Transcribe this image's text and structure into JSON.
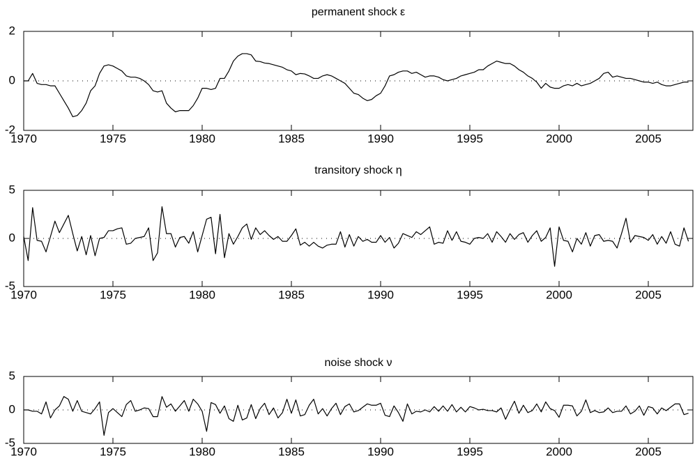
{
  "chart_data": [
    {
      "type": "line",
      "title": "permanent shock ε",
      "xlim": [
        1970,
        2007.5
      ],
      "ylim": [
        -2,
        2
      ],
      "xticks": [
        1970,
        1975,
        1980,
        1985,
        1990,
        1995,
        2000,
        2005
      ],
      "yticks": [
        -2,
        0,
        2
      ],
      "zero_line": true,
      "x": [
        1970,
        1970.25,
        1970.5,
        1970.75,
        1971,
        1971.25,
        1971.5,
        1971.75,
        1972,
        1972.25,
        1972.5,
        1972.75,
        1973,
        1973.25,
        1973.5,
        1973.75,
        1974,
        1974.25,
        1974.5,
        1974.75,
        1975,
        1975.25,
        1975.5,
        1975.75,
        1976,
        1976.25,
        1976.5,
        1976.75,
        1977,
        1977.25,
        1977.5,
        1977.75,
        1978,
        1978.25,
        1978.5,
        1978.75,
        1979,
        1979.25,
        1979.5,
        1979.75,
        1980,
        1980.25,
        1980.5,
        1980.75,
        1981,
        1981.25,
        1981.5,
        1981.75,
        1982,
        1982.25,
        1982.5,
        1982.75,
        1983,
        1983.25,
        1983.5,
        1983.75,
        1984,
        1984.25,
        1984.5,
        1984.75,
        1985,
        1985.25,
        1985.5,
        1985.75,
        1986,
        1986.25,
        1986.5,
        1986.75,
        1987,
        1987.25,
        1987.5,
        1987.75,
        1988,
        1988.25,
        1988.5,
        1988.75,
        1989,
        1989.25,
        1989.5,
        1989.75,
        1990,
        1990.25,
        1990.5,
        1990.75,
        1991,
        1991.25,
        1991.5,
        1991.75,
        1992,
        1992.25,
        1992.5,
        1992.75,
        1993,
        1993.25,
        1993.5,
        1993.75,
        1994,
        1994.25,
        1994.5,
        1994.75,
        1995,
        1995.25,
        1995.5,
        1995.75,
        1996,
        1996.25,
        1996.5,
        1996.75,
        1997,
        1997.25,
        1997.5,
        1997.75,
        1998,
        1998.25,
        1998.5,
        1998.75,
        1999,
        1999.25,
        1999.5,
        1999.75,
        2000,
        2000.25,
        2000.5,
        2000.75,
        2001,
        2001.25,
        2001.5,
        2001.75,
        2002,
        2002.25,
        2002.5,
        2002.75,
        2003,
        2003.25,
        2003.5,
        2003.75,
        2004,
        2004.25,
        2004.5,
        2004.75,
        2005,
        2005.25,
        2005.5,
        2005.75,
        2006,
        2006.25,
        2006.5,
        2006.75,
        2007,
        2007.25
      ],
      "series": [
        {
          "color": "#000000",
          "values": [
            0.0,
            0.0,
            0.3,
            -0.1,
            -0.15,
            -0.15,
            -0.2,
            -0.2,
            -0.5,
            -0.8,
            -1.1,
            -1.45,
            -1.4,
            -1.2,
            -0.9,
            -0.4,
            -0.2,
            0.3,
            0.6,
            0.65,
            0.6,
            0.5,
            0.4,
            0.2,
            0.15,
            0.15,
            0.1,
            0.0,
            -0.15,
            -0.4,
            -0.45,
            -0.4,
            -0.9,
            -1.1,
            -1.25,
            -1.2,
            -1.2,
            -1.2,
            -1.0,
            -0.7,
            -0.3,
            -0.3,
            -0.35,
            -0.3,
            0.1,
            0.1,
            0.4,
            0.8,
            1.0,
            1.1,
            1.1,
            1.05,
            0.8,
            0.78,
            0.72,
            0.7,
            0.65,
            0.6,
            0.55,
            0.45,
            0.4,
            0.25,
            0.3,
            0.28,
            0.2,
            0.1,
            0.1,
            0.2,
            0.25,
            0.2,
            0.1,
            0.0,
            -0.1,
            -0.3,
            -0.5,
            -0.55,
            -0.7,
            -0.8,
            -0.75,
            -0.6,
            -0.5,
            -0.2,
            0.2,
            0.25,
            0.35,
            0.4,
            0.4,
            0.3,
            0.35,
            0.25,
            0.15,
            0.2,
            0.2,
            0.15,
            0.05,
            0.0,
            0.05,
            0.1,
            0.2,
            0.25,
            0.3,
            0.35,
            0.45,
            0.45,
            0.6,
            0.7,
            0.8,
            0.75,
            0.7,
            0.7,
            0.6,
            0.45,
            0.35,
            0.2,
            0.1,
            -0.05,
            -0.3,
            -0.1,
            -0.25,
            -0.3,
            -0.3,
            -0.2,
            -0.15,
            -0.2,
            -0.1,
            -0.2,
            -0.15,
            -0.1,
            0.0,
            0.1,
            0.3,
            0.35,
            0.15,
            0.2,
            0.15,
            0.1,
            0.1,
            0.05,
            0.0,
            -0.05,
            -0.05,
            -0.1,
            -0.05,
            -0.15,
            -0.2,
            -0.2,
            -0.15,
            -0.1,
            -0.05,
            -0.05
          ]
        }
      ]
    },
    {
      "type": "line",
      "title": "transitory shock η",
      "xlim": [
        1970,
        2007.5
      ],
      "ylim": [
        -5,
        5
      ],
      "xticks": [
        1970,
        1975,
        1980,
        1985,
        1990,
        1995,
        2000,
        2005
      ],
      "yticks": [
        -5,
        0,
        5
      ],
      "zero_line": true,
      "x": [
        1970,
        1970.25,
        1970.5,
        1970.75,
        1971,
        1971.25,
        1971.5,
        1971.75,
        1972,
        1972.25,
        1972.5,
        1972.75,
        1973,
        1973.25,
        1973.5,
        1973.75,
        1974,
        1974.25,
        1974.5,
        1974.75,
        1975,
        1975.25,
        1975.5,
        1975.75,
        1976,
        1976.25,
        1976.5,
        1976.75,
        1977,
        1977.25,
        1977.5,
        1977.75,
        1978,
        1978.25,
        1978.5,
        1978.75,
        1979,
        1979.25,
        1979.5,
        1979.75,
        1980,
        1980.25,
        1980.5,
        1980.75,
        1981,
        1981.25,
        1981.5,
        1981.75,
        1982,
        1982.25,
        1982.5,
        1982.75,
        1983,
        1983.25,
        1983.5,
        1983.75,
        1984,
        1984.25,
        1984.5,
        1984.75,
        1985,
        1985.25,
        1985.5,
        1985.75,
        1986,
        1986.25,
        1986.5,
        1986.75,
        1987,
        1987.25,
        1987.5,
        1987.75,
        1988,
        1988.25,
        1988.5,
        1988.75,
        1989,
        1989.25,
        1989.5,
        1989.75,
        1990,
        1990.25,
        1990.5,
        1990.75,
        1991,
        1991.25,
        1991.5,
        1991.75,
        1992,
        1992.25,
        1992.5,
        1992.75,
        1993,
        1993.25,
        1993.5,
        1993.75,
        1994,
        1994.25,
        1994.5,
        1994.75,
        1995,
        1995.25,
        1995.5,
        1995.75,
        1996,
        1996.25,
        1996.5,
        1996.75,
        1997,
        1997.25,
        1997.5,
        1997.75,
        1998,
        1998.25,
        1998.5,
        1998.75,
        1999,
        1999.25,
        1999.5,
        1999.75,
        2000,
        2000.25,
        2000.5,
        2000.75,
        2001,
        2001.25,
        2001.5,
        2001.75,
        2002,
        2002.25,
        2002.5,
        2002.75,
        2003,
        2003.25,
        2003.5,
        2003.75,
        2004,
        2004.25,
        2004.5,
        2004.75,
        2005,
        2005.25,
        2005.5,
        2005.75,
        2006,
        2006.25,
        2006.5,
        2006.75,
        2007,
        2007.25
      ],
      "series": [
        {
          "color": "#000000",
          "values": [
            0.2,
            -2.3,
            3.2,
            -0.2,
            -0.3,
            -1.4,
            0.2,
            1.8,
            0.6,
            1.5,
            2.4,
            0.5,
            -1.3,
            0.2,
            -1.7,
            0.3,
            -1.8,
            0.0,
            0.1,
            0.8,
            0.8,
            1.0,
            1.1,
            -0.6,
            -0.5,
            0.0,
            0.1,
            0.2,
            1.1,
            -2.3,
            -1.5,
            3.3,
            0.5,
            0.5,
            -0.9,
            0.1,
            0.2,
            -0.5,
            0.7,
            -1.4,
            0.3,
            2.0,
            2.2,
            -1.6,
            2.5,
            -2.0,
            0.5,
            -0.6,
            0.2,
            1.1,
            1.5,
            -0.1,
            1.1,
            0.4,
            0.8,
            0.3,
            -0.1,
            0.2,
            -0.3,
            -0.3,
            0.3,
            1.0,
            -0.7,
            -0.4,
            -0.8,
            -0.4,
            -0.8,
            -1.0,
            -0.7,
            -0.6,
            -0.6,
            0.7,
            -0.9,
            0.4,
            -0.8,
            0.2,
            -0.3,
            -0.1,
            -0.4,
            -0.4,
            0.3,
            -0.4,
            0.1,
            -1.0,
            -0.5,
            0.5,
            0.3,
            0.1,
            0.7,
            0.4,
            0.8,
            1.2,
            -0.6,
            -0.4,
            -0.5,
            0.8,
            -0.2,
            0.7,
            -0.3,
            -0.4,
            -0.6,
            0.0,
            0.1,
            0.0,
            0.5,
            -0.4,
            0.7,
            0.2,
            -0.4,
            0.5,
            -0.1,
            0.4,
            0.6,
            -0.4,
            0.3,
            0.8,
            -0.3,
            0.1,
            1.1,
            -2.9,
            1.2,
            -0.2,
            -0.3,
            -1.4,
            0.0,
            -0.6,
            0.6,
            -0.8,
            0.3,
            0.4,
            -0.3,
            -0.2,
            -0.3,
            -1.0,
            0.5,
            2.1,
            -0.4,
            0.3,
            0.2,
            0.1,
            -0.2,
            0.4,
            -0.6,
            0.2,
            -0.5,
            0.7,
            -0.6,
            -0.8,
            1.1,
            -0.3
          ]
        }
      ]
    },
    {
      "type": "line",
      "title": "noise shock ν",
      "xlim": [
        1970,
        2007.5
      ],
      "ylim": [
        -5,
        5
      ],
      "xticks": [
        1970,
        1975,
        1980,
        1985,
        1990,
        1995,
        2000,
        2005
      ],
      "yticks": [
        -5,
        0,
        5
      ],
      "zero_line": true,
      "x": [
        1970,
        1970.25,
        1970.5,
        1970.75,
        1971,
        1971.25,
        1971.5,
        1971.75,
        1972,
        1972.25,
        1972.5,
        1972.75,
        1973,
        1973.25,
        1973.5,
        1973.75,
        1974,
        1974.25,
        1974.5,
        1974.75,
        1975,
        1975.25,
        1975.5,
        1975.75,
        1976,
        1976.25,
        1976.5,
        1976.75,
        1977,
        1977.25,
        1977.5,
        1977.75,
        1978,
        1978.25,
        1978.5,
        1978.75,
        1979,
        1979.25,
        1979.5,
        1979.75,
        1980,
        1980.25,
        1980.5,
        1980.75,
        1981,
        1981.25,
        1981.5,
        1981.75,
        1982,
        1982.25,
        1982.5,
        1982.75,
        1983,
        1983.25,
        1983.5,
        1983.75,
        1984,
        1984.25,
        1984.5,
        1984.75,
        1985,
        1985.25,
        1985.5,
        1985.75,
        1986,
        1986.25,
        1986.5,
        1986.75,
        1987,
        1987.25,
        1987.5,
        1987.75,
        1988,
        1988.25,
        1988.5,
        1988.75,
        1989,
        1989.25,
        1989.5,
        1989.75,
        1990,
        1990.25,
        1990.5,
        1990.75,
        1991,
        1991.25,
        1991.5,
        1991.75,
        1992,
        1992.25,
        1992.5,
        1992.75,
        1993,
        1993.25,
        1993.5,
        1993.75,
        1994,
        1994.25,
        1994.5,
        1994.75,
        1995,
        1995.25,
        1995.5,
        1995.75,
        1996,
        1996.25,
        1996.5,
        1996.75,
        1997,
        1997.25,
        1997.5,
        1997.75,
        1998,
        1998.25,
        1998.5,
        1998.75,
        1999,
        1999.25,
        1999.5,
        1999.75,
        2000,
        2000.25,
        2000.5,
        2000.75,
        2001,
        2001.25,
        2001.5,
        2001.75,
        2002,
        2002.25,
        2002.5,
        2002.75,
        2003,
        2003.25,
        2003.5,
        2003.75,
        2004,
        2004.25,
        2004.5,
        2004.75,
        2005,
        2005.25,
        2005.5,
        2005.75,
        2006,
        2006.25,
        2006.5,
        2006.75,
        2007,
        2007.25
      ],
      "series": [
        {
          "color": "#000000",
          "values": [
            0.0,
            0.0,
            -0.2,
            -0.2,
            -0.6,
            1.2,
            -1.2,
            0.0,
            0.6,
            2.0,
            1.6,
            -0.2,
            1.4,
            -0.2,
            -0.4,
            -0.6,
            0.2,
            1.2,
            -3.8,
            -0.4,
            0.2,
            -0.4,
            -1.0,
            0.8,
            1.4,
            -0.2,
            0.0,
            0.3,
            0.2,
            -1.0,
            -1.0,
            2.0,
            0.4,
            0.9,
            -0.2,
            0.6,
            1.4,
            -0.2,
            1.6,
            0.9,
            -0.2,
            -3.2,
            1.1,
            0.8,
            -0.5,
            0.6,
            -1.3,
            -1.7,
            0.7,
            -1.5,
            -1.2,
            0.8,
            -1.3,
            0.2,
            1.0,
            -0.7,
            0.3,
            -1.2,
            -0.4,
            1.6,
            -0.5,
            1.5,
            -0.9,
            -0.7,
            0.7,
            1.6,
            -0.6,
            0.2,
            -0.9,
            0.2,
            1.0,
            -0.7,
            0.5,
            0.9,
            -0.3,
            -0.1,
            0.4,
            0.9,
            0.7,
            0.7,
            1.0,
            -0.8,
            -1.0,
            0.6,
            -0.4,
            -1.7,
            0.9,
            -0.6,
            -0.2,
            -0.3,
            0.0,
            -0.3,
            0.5,
            -0.2,
            0.6,
            -0.2,
            0.8,
            -0.3,
            0.4,
            -0.3,
            0.5,
            0.3,
            0.0,
            0.1,
            -0.1,
            -0.1,
            -0.3,
            0.3,
            -1.4,
            0.0,
            1.3,
            -0.5,
            0.7,
            -0.4,
            -0.1,
            0.9,
            -0.3,
            1.2,
            0.2,
            -0.1,
            -1.1,
            0.7,
            0.7,
            0.6,
            -0.9,
            -0.2,
            1.5,
            -0.4,
            -0.1,
            -0.4,
            -0.3,
            0.3,
            -0.4,
            -0.2,
            -0.2,
            0.6,
            -0.6,
            -0.2,
            0.6,
            -0.8,
            0.5,
            0.3,
            -0.6,
            0.3,
            -0.1,
            0.4,
            0.9,
            0.9,
            -0.7,
            -0.5
          ]
        }
      ]
    }
  ]
}
